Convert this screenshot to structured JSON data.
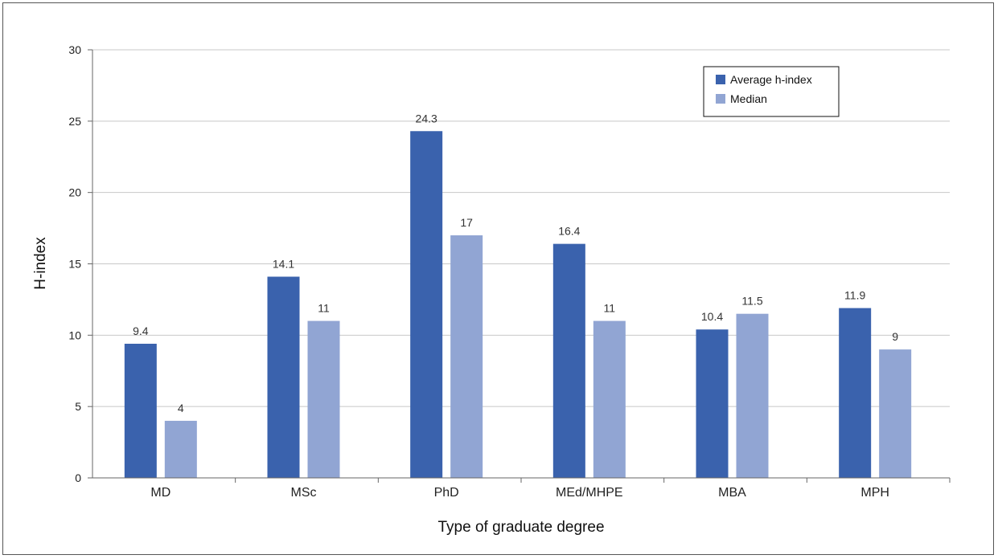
{
  "chart_data": {
    "type": "bar",
    "title": "",
    "xlabel": "Type of graduate degree",
    "ylabel": "H-index",
    "ylim": [
      0,
      30
    ],
    "yticks": [
      0,
      5,
      10,
      15,
      20,
      25,
      30
    ],
    "grid": true,
    "legend_position": "top-right",
    "categories": [
      "MD",
      "MSc",
      "PhD",
      "MEd/MHPE",
      "MBA",
      "MPH"
    ],
    "series": [
      {
        "name": "Average h-index",
        "color": "#3a62ad",
        "values": [
          9.4,
          14.1,
          24.3,
          16.4,
          10.4,
          11.9
        ],
        "labels": [
          "9.4",
          "14.1",
          "24.3",
          "16.4",
          "10.4",
          "11.9"
        ]
      },
      {
        "name": "Median",
        "color": "#91a5d3",
        "values": [
          4,
          11,
          17,
          11,
          11.5,
          9
        ],
        "labels": [
          "4",
          "11",
          "17",
          "11",
          "11.5",
          "9"
        ]
      }
    ]
  }
}
